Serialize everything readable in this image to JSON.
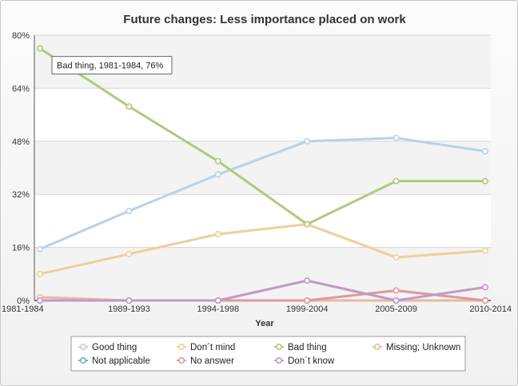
{
  "chart_data": {
    "type": "line",
    "title": "Future changes: Less importance placed on work",
    "xlabel": "Year",
    "ylabel": "",
    "categories": [
      "1981-1984",
      "1989-1993",
      "1994-1998",
      "1999-2004",
      "2005-2009",
      "2010-2014"
    ],
    "ylim": [
      0,
      80
    ],
    "yticks": [
      "0%",
      "16%",
      "32%",
      "48%",
      "64%",
      "80%"
    ],
    "ytick_values": [
      0,
      16,
      32,
      48,
      64,
      80
    ],
    "grid": true,
    "legend_position": "bottom",
    "series": [
      {
        "name": "Good thing",
        "color": "#b8d2e8",
        "values": [
          15.5,
          27,
          38,
          48,
          49,
          45
        ]
      },
      {
        "name": "Don´t mind",
        "color": "#efce9a",
        "values": [
          8,
          14,
          20,
          23,
          13,
          15
        ]
      },
      {
        "name": "Bad thing",
        "color": "#aecb7a",
        "values": [
          76,
          58.5,
          42,
          23,
          36,
          36
        ]
      },
      {
        "name": "Missing; Unknown",
        "color": "#e8b8a2",
        "values": [
          1,
          0,
          0,
          0,
          0,
          0
        ]
      },
      {
        "name": "Not applicable",
        "color": "#6ab3b8",
        "values": [
          0,
          0,
          0,
          0,
          0,
          0
        ]
      },
      {
        "name": "No answer",
        "color": "#dc9a9a",
        "values": [
          0,
          0,
          0,
          0,
          3,
          0
        ]
      },
      {
        "name": "Don´t know",
        "color": "#c19ac6",
        "values": [
          0,
          0,
          0,
          6,
          0,
          4
        ]
      }
    ],
    "tooltip": {
      "series_index": 2,
      "point_index": 0,
      "text": "Bad thing, 1981-1984, 76%"
    }
  }
}
